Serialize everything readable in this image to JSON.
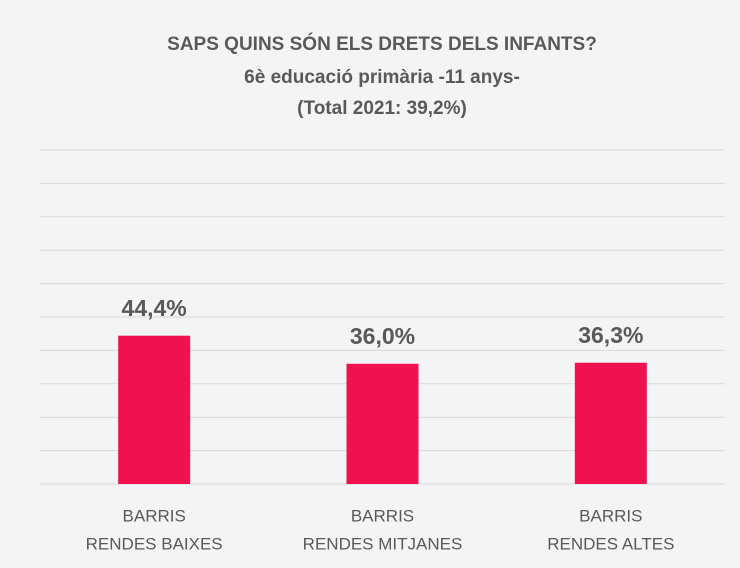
{
  "chart_data": {
    "type": "bar",
    "title": "SAPS QUINS SÓN ELS DRETS DELS INFANTS?",
    "subtitle": "6è educació primària -11 anys-",
    "note": "(Total 2021: 39,2%)",
    "categories": [
      [
        "BARRIS",
        "RENDES BAIXES"
      ],
      [
        "BARRIS",
        "RENDES MITJANES"
      ],
      [
        "BARRIS",
        "RENDES ALTES"
      ]
    ],
    "values": [
      44.4,
      36.0,
      36.3
    ],
    "value_labels": [
      "44,4%",
      "36,0%",
      "36,3%"
    ],
    "color": "#f0124f",
    "ylim": [
      0,
      100
    ],
    "yticks": [
      0,
      10,
      20,
      30,
      40,
      50,
      60,
      70,
      80,
      90,
      100
    ],
    "grid": true
  }
}
